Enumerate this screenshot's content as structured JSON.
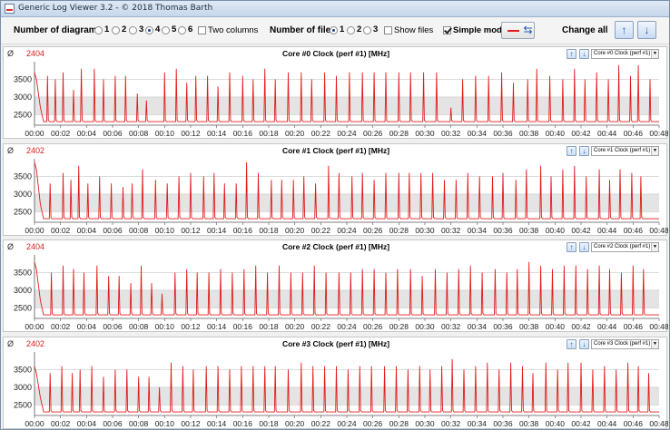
{
  "window": {
    "title": "Generic Log Viewer 3.2 - © 2018 Thomas Barth"
  },
  "toolbar": {
    "diagrams_label": "Number of diagrams",
    "diagram_options": [
      "1",
      "2",
      "3",
      "4",
      "5",
      "6"
    ],
    "diagram_selected": "4",
    "two_columns_label": "Two columns",
    "two_columns_checked": false,
    "files_label": "Number of files",
    "file_options": [
      "1",
      "2",
      "3"
    ],
    "file_selected": "1",
    "show_files_label": "Show files",
    "show_files_checked": false,
    "simple_mode_label": "Simple mode",
    "simple_mode_checked": true,
    "change_all_label": "Change all",
    "up_icon": "up-arrow-icon",
    "down_icon": "down-arrow-icon"
  },
  "colors": {
    "series": "#e31b1b",
    "band": "#e4e4e4",
    "grid": "#c8c8c8"
  },
  "panels": [
    {
      "phi": "Ø",
      "value": "2404",
      "title": "Core #0 Clock (perf #1) [MHz]",
      "select": "Core #0 Clock (perf #1) [M"
    },
    {
      "phi": "Ø",
      "value": "2402",
      "title": "Core #1 Clock (perf #1) [MHz]",
      "select": "Core #1 Clock (perf #1) [M"
    },
    {
      "phi": "Ø",
      "value": "2404",
      "title": "Core #2 Clock (perf #1) [MHz]",
      "select": "Core #2 Clock (perf #1) [M"
    },
    {
      "phi": "Ø",
      "value": "2402",
      "title": "Core #3 Clock (perf #1) [MHz]",
      "select": "Core #3 Clock (perf #1) [M"
    }
  ],
  "chart_data": [
    {
      "type": "line",
      "title": "Core #0 Clock (perf #1) [MHz]",
      "x_ticks": [
        "00:00",
        "00:02",
        "00:04",
        "00:06",
        "00:08",
        "00:10",
        "00:12",
        "00:14",
        "00:16",
        "00:18",
        "00:20",
        "00:22",
        "00:24",
        "00:26",
        "00:28",
        "00:30",
        "00:32",
        "00:34",
        "00:36",
        "00:38",
        "00:40",
        "00:42",
        "00:44",
        "00:46",
        "00:48"
      ],
      "y_ticks": [
        2500,
        3000,
        3500
      ],
      "ylim": [
        2200,
        4000
      ],
      "baseline": 2300,
      "start_value": 3700,
      "spikes": [
        [
          0.3,
          3100
        ],
        [
          1.0,
          3600
        ],
        [
          1.6,
          3500
        ],
        [
          2.2,
          3700
        ],
        [
          3.0,
          3200
        ],
        [
          3.6,
          3800
        ],
        [
          4.6,
          3800
        ],
        [
          5.3,
          3500
        ],
        [
          6.2,
          3600
        ],
        [
          7.0,
          3600
        ],
        [
          7.9,
          3100
        ],
        [
          8.6,
          2900
        ],
        [
          10.0,
          3700
        ],
        [
          10.9,
          3800
        ],
        [
          11.7,
          3400
        ],
        [
          12.4,
          3600
        ],
        [
          13.3,
          3600
        ],
        [
          14.1,
          3300
        ],
        [
          15.0,
          3700
        ],
        [
          16.0,
          3600
        ],
        [
          16.8,
          3500
        ],
        [
          17.7,
          3800
        ],
        [
          18.5,
          3500
        ],
        [
          19.5,
          3700
        ],
        [
          20.5,
          3700
        ],
        [
          21.3,
          3500
        ],
        [
          22.3,
          3700
        ],
        [
          23.2,
          3600
        ],
        [
          24.2,
          3700
        ],
        [
          25.2,
          3700
        ],
        [
          26.1,
          3700
        ],
        [
          27.0,
          3700
        ],
        [
          28.0,
          3700
        ],
        [
          28.9,
          3700
        ],
        [
          29.9,
          3700
        ],
        [
          30.9,
          3700
        ],
        [
          32.0,
          2700
        ],
        [
          32.9,
          3500
        ],
        [
          33.9,
          3600
        ],
        [
          34.9,
          3600
        ],
        [
          35.9,
          3700
        ],
        [
          36.8,
          3400
        ],
        [
          37.9,
          3500
        ],
        [
          38.6,
          3800
        ],
        [
          39.6,
          3600
        ],
        [
          40.6,
          3500
        ],
        [
          41.5,
          3800
        ],
        [
          42.3,
          3500
        ],
        [
          43.2,
          3700
        ],
        [
          44.1,
          3500
        ],
        [
          44.9,
          3900
        ],
        [
          45.8,
          3600
        ],
        [
          46.4,
          3900
        ],
        [
          47.3,
          3500
        ]
      ]
    },
    {
      "type": "line",
      "title": "Core #1 Clock (perf #1) [MHz]",
      "x_ticks": [
        "00:00",
        "00:02",
        "00:04",
        "00:06",
        "00:08",
        "00:10",
        "00:12",
        "00:14",
        "00:16",
        "00:18",
        "00:20",
        "00:22",
        "00:24",
        "00:26",
        "00:28",
        "00:30",
        "00:32",
        "00:34",
        "00:36",
        "00:38",
        "00:40",
        "00:42",
        "00:44",
        "00:46",
        "00:48"
      ],
      "y_ticks": [
        2500,
        3000,
        3500
      ],
      "ylim": [
        2200,
        4000
      ],
      "baseline": 2300,
      "start_value": 3900,
      "spikes": [
        [
          1.2,
          3300
        ],
        [
          2.2,
          3600
        ],
        [
          2.8,
          3400
        ],
        [
          3.4,
          3800
        ],
        [
          4.1,
          3300
        ],
        [
          5.0,
          3500
        ],
        [
          5.9,
          3300
        ],
        [
          6.8,
          3200
        ],
        [
          7.5,
          3300
        ],
        [
          8.3,
          3700
        ],
        [
          9.3,
          3400
        ],
        [
          10.2,
          3300
        ],
        [
          11.1,
          3500
        ],
        [
          12.0,
          3600
        ],
        [
          13.0,
          3500
        ],
        [
          13.8,
          3600
        ],
        [
          14.6,
          3300
        ],
        [
          15.5,
          3300
        ],
        [
          16.3,
          3900
        ],
        [
          17.2,
          3600
        ],
        [
          18.2,
          3400
        ],
        [
          19.0,
          3400
        ],
        [
          19.9,
          3400
        ],
        [
          20.7,
          3500
        ],
        [
          21.6,
          3300
        ],
        [
          22.6,
          3800
        ],
        [
          23.4,
          3600
        ],
        [
          24.4,
          3500
        ],
        [
          25.2,
          3600
        ],
        [
          26.1,
          3400
        ],
        [
          27.0,
          3600
        ],
        [
          28.0,
          3600
        ],
        [
          28.8,
          3600
        ],
        [
          29.7,
          3600
        ],
        [
          30.6,
          3600
        ],
        [
          31.5,
          3400
        ],
        [
          32.4,
          3400
        ],
        [
          33.3,
          3600
        ],
        [
          34.2,
          3500
        ],
        [
          35.2,
          3500
        ],
        [
          36.0,
          3600
        ],
        [
          37.0,
          3400
        ],
        [
          37.8,
          3700
        ],
        [
          38.9,
          3800
        ],
        [
          39.7,
          3500
        ],
        [
          40.6,
          3700
        ],
        [
          41.5,
          3800
        ],
        [
          42.4,
          3500
        ],
        [
          43.4,
          3700
        ],
        [
          44.2,
          3400
        ],
        [
          45.0,
          3700
        ],
        [
          45.9,
          3600
        ],
        [
          46.6,
          3500
        ]
      ]
    },
    {
      "type": "line",
      "title": "Core #2 Clock (perf #1) [MHz]",
      "x_ticks": [
        "00:00",
        "00:02",
        "00:04",
        "00:06",
        "00:08",
        "00:10",
        "00:12",
        "00:14",
        "00:16",
        "00:18",
        "00:20",
        "00:22",
        "00:24",
        "00:26",
        "00:28",
        "00:30",
        "00:32",
        "00:34",
        "00:36",
        "00:38",
        "00:40",
        "00:42",
        "00:44",
        "00:46",
        "00:48"
      ],
      "y_ticks": [
        2500,
        3000,
        3500
      ],
      "ylim": [
        2200,
        4000
      ],
      "baseline": 2300,
      "start_value": 3800,
      "spikes": [
        [
          0.5,
          3100
        ],
        [
          1.3,
          3500
        ],
        [
          2.2,
          3700
        ],
        [
          3.0,
          3600
        ],
        [
          3.8,
          3500
        ],
        [
          4.8,
          3700
        ],
        [
          5.7,
          3400
        ],
        [
          6.5,
          3400
        ],
        [
          7.4,
          3200
        ],
        [
          8.2,
          3700
        ],
        [
          9.0,
          3200
        ],
        [
          9.8,
          2900
        ],
        [
          10.8,
          3500
        ],
        [
          11.7,
          3600
        ],
        [
          12.5,
          3500
        ],
        [
          13.4,
          3500
        ],
        [
          14.3,
          3600
        ],
        [
          15.2,
          3500
        ],
        [
          16.1,
          3600
        ],
        [
          17.0,
          3700
        ],
        [
          17.9,
          3500
        ],
        [
          18.8,
          3700
        ],
        [
          19.7,
          3500
        ],
        [
          20.6,
          3500
        ],
        [
          21.5,
          3700
        ],
        [
          22.4,
          3500
        ],
        [
          23.4,
          3500
        ],
        [
          24.3,
          3500
        ],
        [
          25.2,
          3600
        ],
        [
          26.1,
          3600
        ],
        [
          27.0,
          3500
        ],
        [
          27.9,
          3600
        ],
        [
          28.9,
          3600
        ],
        [
          29.8,
          3400
        ],
        [
          30.8,
          3600
        ],
        [
          31.7,
          3500
        ],
        [
          32.6,
          3600
        ],
        [
          33.5,
          3700
        ],
        [
          34.4,
          3500
        ],
        [
          35.4,
          3600
        ],
        [
          36.3,
          3500
        ],
        [
          37.1,
          3600
        ],
        [
          38.0,
          3800
        ],
        [
          38.9,
          3700
        ],
        [
          39.8,
          3600
        ],
        [
          40.7,
          3700
        ],
        [
          41.6,
          3700
        ],
        [
          42.5,
          3600
        ],
        [
          43.4,
          3700
        ],
        [
          44.2,
          3600
        ],
        [
          45.1,
          3500
        ],
        [
          46.0,
          3700
        ],
        [
          46.8,
          3600
        ]
      ]
    },
    {
      "type": "line",
      "title": "Core #3 Clock (perf #1) [MHz]",
      "x_ticks": [
        "00:00",
        "00:02",
        "00:04",
        "00:06",
        "00:08",
        "00:10",
        "00:12",
        "00:14",
        "00:16",
        "00:18",
        "00:20",
        "00:22",
        "00:24",
        "00:26",
        "00:28",
        "00:30",
        "00:32",
        "00:34",
        "00:36",
        "00:38",
        "00:40",
        "00:42",
        "00:44",
        "00:46",
        "00:48"
      ],
      "y_ticks": [
        2500,
        3000,
        3500
      ],
      "ylim": [
        2200,
        4000
      ],
      "baseline": 2300,
      "start_value": 3600,
      "spikes": [
        [
          0.4,
          3000
        ],
        [
          1.2,
          3400
        ],
        [
          2.1,
          3600
        ],
        [
          2.9,
          3400
        ],
        [
          3.5,
          3500
        ],
        [
          4.4,
          3600
        ],
        [
          5.3,
          3300
        ],
        [
          6.2,
          3500
        ],
        [
          7.1,
          3500
        ],
        [
          8.0,
          3300
        ],
        [
          8.8,
          3300
        ],
        [
          9.6,
          3000
        ],
        [
          10.5,
          3700
        ],
        [
          11.4,
          3600
        ],
        [
          12.2,
          3500
        ],
        [
          13.2,
          3600
        ],
        [
          14.1,
          3600
        ],
        [
          15.0,
          3500
        ],
        [
          15.9,
          3600
        ],
        [
          16.8,
          3600
        ],
        [
          17.7,
          3600
        ],
        [
          18.5,
          3600
        ],
        [
          19.5,
          3500
        ],
        [
          20.5,
          3700
        ],
        [
          21.4,
          3600
        ],
        [
          22.3,
          3600
        ],
        [
          23.2,
          3600
        ],
        [
          24.1,
          3500
        ],
        [
          25.0,
          3600
        ],
        [
          25.9,
          3600
        ],
        [
          26.9,
          3600
        ],
        [
          27.8,
          3600
        ],
        [
          28.7,
          3500
        ],
        [
          29.6,
          3600
        ],
        [
          30.4,
          3500
        ],
        [
          31.3,
          3600
        ],
        [
          32.1,
          3800
        ],
        [
          33.0,
          3500
        ],
        [
          33.9,
          3600
        ],
        [
          34.8,
          3700
        ],
        [
          35.7,
          3500
        ],
        [
          36.6,
          3700
        ],
        [
          37.5,
          3600
        ],
        [
          38.3,
          3400
        ],
        [
          39.3,
          3700
        ],
        [
          40.2,
          3500
        ],
        [
          41.0,
          3700
        ],
        [
          42.0,
          3700
        ],
        [
          42.9,
          3500
        ],
        [
          43.8,
          3600
        ],
        [
          44.7,
          3500
        ],
        [
          45.6,
          3700
        ],
        [
          46.4,
          3600
        ],
        [
          47.2,
          3400
        ]
      ]
    }
  ]
}
